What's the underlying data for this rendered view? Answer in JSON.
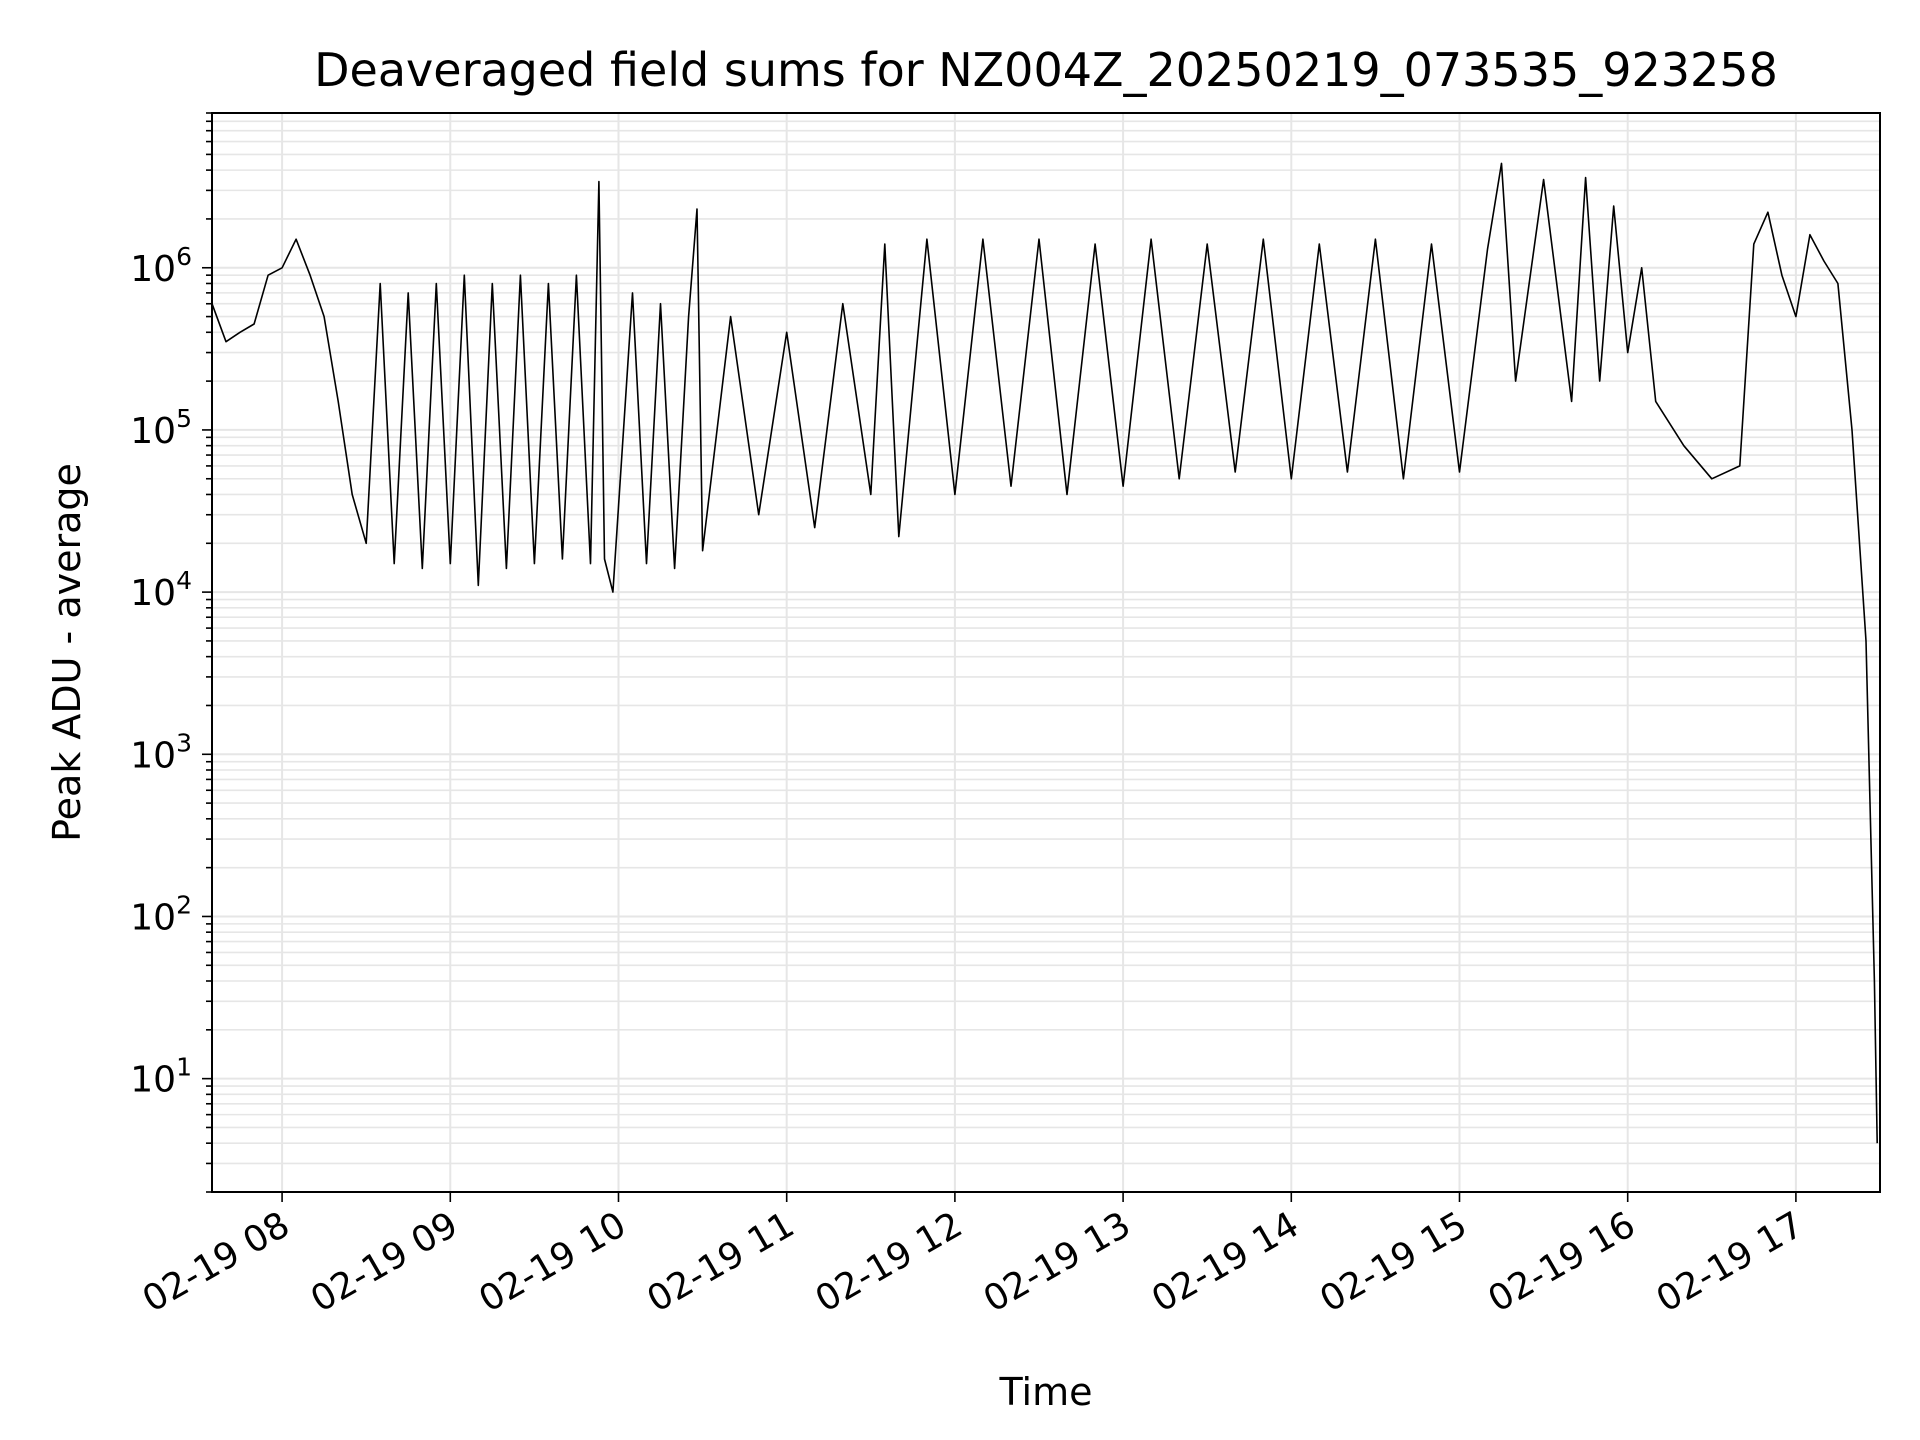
{
  "chart_data": {
    "type": "line",
    "title": "Deaveraged field sums for NZ004Z_20250219_073535_923258",
    "xlabel": "Time",
    "ylabel": "Peak ADU - average",
    "yscale": "log",
    "ylim": [
      2,
      9000000
    ],
    "xlim": [
      "2025-02-19 07:35",
      "2025-02-19 17:30"
    ],
    "grid": true,
    "x_ticks": [
      {
        "x": "2025-02-19 08:00",
        "label": "02-19 08"
      },
      {
        "x": "2025-02-19 09:00",
        "label": "02-19 09"
      },
      {
        "x": "2025-02-19 10:00",
        "label": "02-19 10"
      },
      {
        "x": "2025-02-19 11:00",
        "label": "02-19 11"
      },
      {
        "x": "2025-02-19 12:00",
        "label": "02-19 12"
      },
      {
        "x": "2025-02-19 13:00",
        "label": "02-19 13"
      },
      {
        "x": "2025-02-19 14:00",
        "label": "02-19 14"
      },
      {
        "x": "2025-02-19 15:00",
        "label": "02-19 15"
      },
      {
        "x": "2025-02-19 16:00",
        "label": "02-19 16"
      },
      {
        "x": "2025-02-19 17:00",
        "label": "02-19 17"
      }
    ],
    "y_ticks": [
      {
        "value": 10,
        "base": "10",
        "exp": "1"
      },
      {
        "value": 100,
        "base": "10",
        "exp": "2"
      },
      {
        "value": 1000,
        "base": "10",
        "exp": "3"
      },
      {
        "value": 10000,
        "base": "10",
        "exp": "4"
      },
      {
        "value": 100000,
        "base": "10",
        "exp": "5"
      },
      {
        "value": 1000000,
        "base": "10",
        "exp": "6"
      }
    ],
    "series": [
      {
        "color": "#000000",
        "points": [
          [
            "2025-02-19 07:35",
            600000
          ],
          [
            "2025-02-19 07:40",
            350000
          ],
          [
            "2025-02-19 07:45",
            400000
          ],
          [
            "2025-02-19 07:50",
            450000
          ],
          [
            "2025-02-19 07:55",
            900000
          ],
          [
            "2025-02-19 08:00",
            1000000
          ],
          [
            "2025-02-19 08:05",
            1500000
          ],
          [
            "2025-02-19 08:10",
            900000
          ],
          [
            "2025-02-19 08:15",
            500000
          ],
          [
            "2025-02-19 08:20",
            150000
          ],
          [
            "2025-02-19 08:25",
            40000
          ],
          [
            "2025-02-19 08:30",
            20000
          ],
          [
            "2025-02-19 08:35",
            800000
          ],
          [
            "2025-02-19 08:40",
            15000
          ],
          [
            "2025-02-19 08:45",
            700000
          ],
          [
            "2025-02-19 08:50",
            14000
          ],
          [
            "2025-02-19 08:55",
            800000
          ],
          [
            "2025-02-19 09:00",
            15000
          ],
          [
            "2025-02-19 09:05",
            900000
          ],
          [
            "2025-02-19 09:10",
            11000
          ],
          [
            "2025-02-19 09:15",
            800000
          ],
          [
            "2025-02-19 09:20",
            14000
          ],
          [
            "2025-02-19 09:25",
            900000
          ],
          [
            "2025-02-19 09:30",
            15000
          ],
          [
            "2025-02-19 09:35",
            800000
          ],
          [
            "2025-02-19 09:40",
            16000
          ],
          [
            "2025-02-19 09:45",
            900000
          ],
          [
            "2025-02-19 09:50",
            15000
          ],
          [
            "2025-02-19 09:53",
            3400000
          ],
          [
            "2025-02-19 09:55",
            16000
          ],
          [
            "2025-02-19 09:58",
            10000
          ],
          [
            "2025-02-19 10:05",
            700000
          ],
          [
            "2025-02-19 10:10",
            15000
          ],
          [
            "2025-02-19 10:15",
            600000
          ],
          [
            "2025-02-19 10:20",
            14000
          ],
          [
            "2025-02-19 10:25",
            500000
          ],
          [
            "2025-02-19 10:28",
            2300000
          ],
          [
            "2025-02-19 10:30",
            18000
          ],
          [
            "2025-02-19 10:40",
            500000
          ],
          [
            "2025-02-19 10:50",
            30000
          ],
          [
            "2025-02-19 11:00",
            400000
          ],
          [
            "2025-02-19 11:10",
            25000
          ],
          [
            "2025-02-19 11:20",
            600000
          ],
          [
            "2025-02-19 11:30",
            40000
          ],
          [
            "2025-02-19 11:35",
            1400000
          ],
          [
            "2025-02-19 11:40",
            22000
          ],
          [
            "2025-02-19 11:50",
            1500000
          ],
          [
            "2025-02-19 12:00",
            40000
          ],
          [
            "2025-02-19 12:10",
            1500000
          ],
          [
            "2025-02-19 12:20",
            45000
          ],
          [
            "2025-02-19 12:30",
            1500000
          ],
          [
            "2025-02-19 12:40",
            40000
          ],
          [
            "2025-02-19 12:50",
            1400000
          ],
          [
            "2025-02-19 13:00",
            45000
          ],
          [
            "2025-02-19 13:10",
            1500000
          ],
          [
            "2025-02-19 13:20",
            50000
          ],
          [
            "2025-02-19 13:30",
            1400000
          ],
          [
            "2025-02-19 13:40",
            55000
          ],
          [
            "2025-02-19 13:50",
            1500000
          ],
          [
            "2025-02-19 14:00",
            50000
          ],
          [
            "2025-02-19 14:10",
            1400000
          ],
          [
            "2025-02-19 14:20",
            55000
          ],
          [
            "2025-02-19 14:30",
            1500000
          ],
          [
            "2025-02-19 14:40",
            50000
          ],
          [
            "2025-02-19 14:50",
            1400000
          ],
          [
            "2025-02-19 15:00",
            55000
          ],
          [
            "2025-02-19 15:10",
            1300000
          ],
          [
            "2025-02-19 15:15",
            4400000
          ],
          [
            "2025-02-19 15:20",
            200000
          ],
          [
            "2025-02-19 15:30",
            3500000
          ],
          [
            "2025-02-19 15:40",
            150000
          ],
          [
            "2025-02-19 15:45",
            3600000
          ],
          [
            "2025-02-19 15:50",
            200000
          ],
          [
            "2025-02-19 15:55",
            2400000
          ],
          [
            "2025-02-19 16:00",
            300000
          ],
          [
            "2025-02-19 16:05",
            1000000
          ],
          [
            "2025-02-19 16:10",
            150000
          ],
          [
            "2025-02-19 16:20",
            80000
          ],
          [
            "2025-02-19 16:30",
            50000
          ],
          [
            "2025-02-19 16:40",
            60000
          ],
          [
            "2025-02-19 16:45",
            1400000
          ],
          [
            "2025-02-19 16:50",
            2200000
          ],
          [
            "2025-02-19 16:55",
            900000
          ],
          [
            "2025-02-19 17:00",
            500000
          ],
          [
            "2025-02-19 17:05",
            1600000
          ],
          [
            "2025-02-19 17:10",
            1100000
          ],
          [
            "2025-02-19 17:15",
            800000
          ],
          [
            "2025-02-19 17:20",
            100000
          ],
          [
            "2025-02-19 17:25",
            5000
          ],
          [
            "2025-02-19 17:28",
            40
          ],
          [
            "2025-02-19 17:29",
            4
          ]
        ]
      }
    ]
  }
}
